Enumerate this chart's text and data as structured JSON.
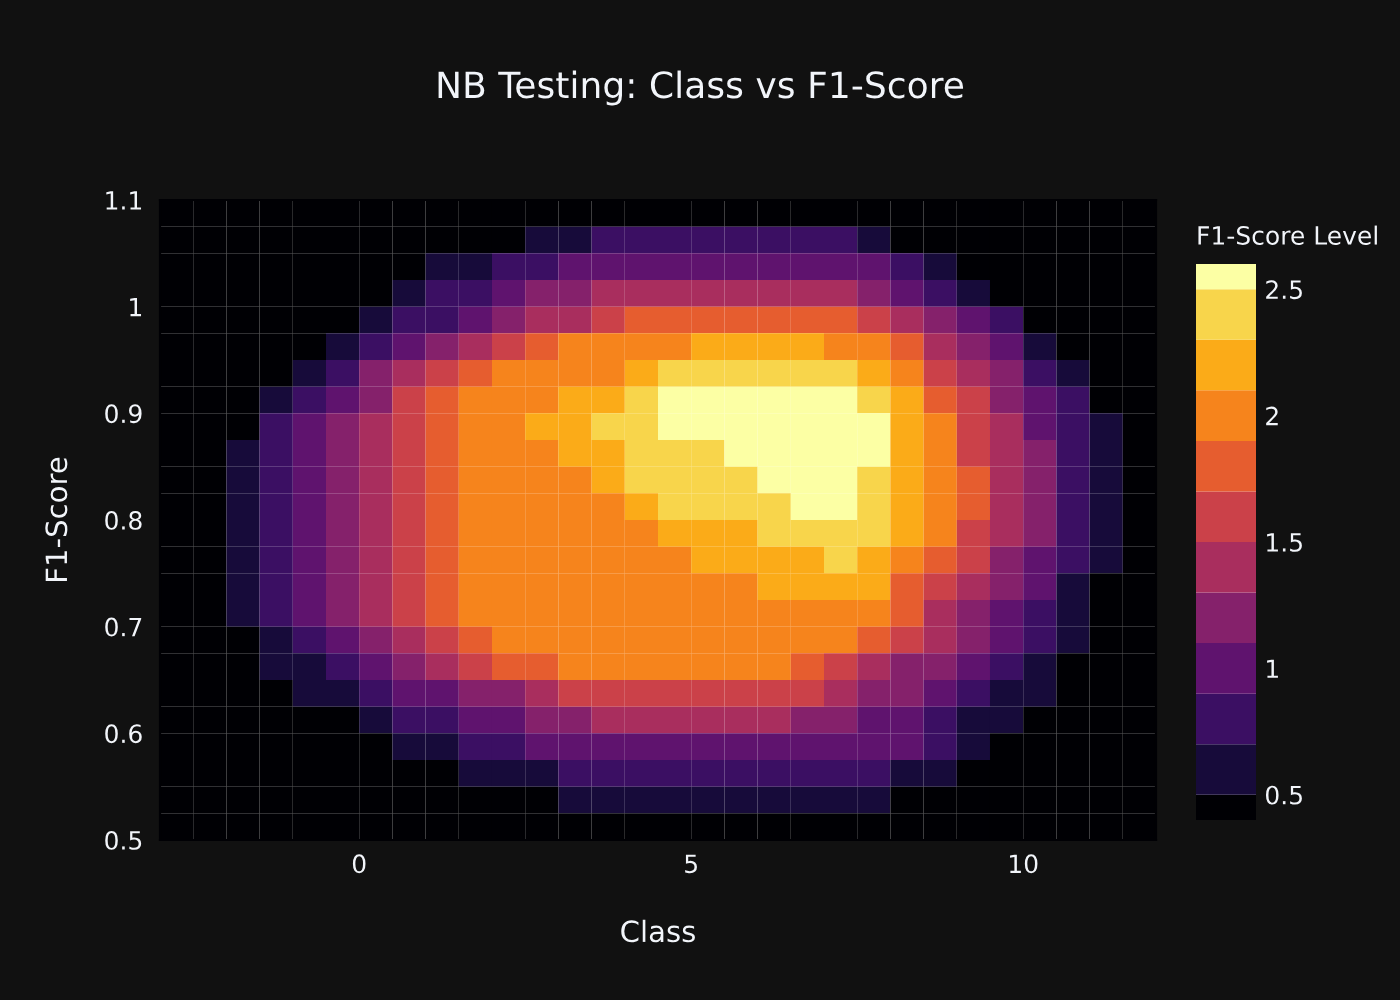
{
  "chart_data": {
    "type": "heatmap",
    "title": "NB Testing: Class vs F1-Score",
    "xlabel": "Class",
    "ylabel": "F1-Score",
    "clabel": "F1-Score Level",
    "x": [
      -2.75,
      -2.25,
      -1.75,
      -1.25,
      -0.75,
      -0.25,
      0.25,
      0.75,
      1.25,
      1.75,
      2.25,
      2.75,
      3.25,
      3.75,
      4.25,
      4.75,
      5.25,
      5.75,
      6.25,
      6.75,
      7.25,
      7.75,
      8.25,
      8.75,
      9.25,
      9.75,
      10.25,
      10.75,
      11.25,
      11.75
    ],
    "cells": [
      [
        0.4,
        0.4,
        0.4,
        0.4,
        0.4,
        0.4,
        0.4,
        0.4,
        0.4,
        0.4,
        0.4,
        0.4,
        0.4,
        0.4,
        0.4,
        0.4,
        0.4,
        0.4,
        0.4,
        0.4,
        0.4,
        0.4,
        0.4,
        0.4,
        0.4,
        0.4,
        0.4,
        0.4,
        0.4,
        0.4
      ],
      [
        0.4,
        0.4,
        0.4,
        0.4,
        0.4,
        0.4,
        0.4,
        0.4,
        0.4,
        0.4,
        0.4,
        0.6,
        0.6,
        0.8,
        0.8,
        0.8,
        0.8,
        0.8,
        0.8,
        0.8,
        0.8,
        0.6,
        0.4,
        0.4,
        0.4,
        0.4,
        0.4,
        0.4,
        0.4,
        0.4
      ],
      [
        0.4,
        0.4,
        0.4,
        0.4,
        0.4,
        0.4,
        0.4,
        0.4,
        0.6,
        0.6,
        0.8,
        0.8,
        1.0,
        1.0,
        1.0,
        1.0,
        1.0,
        1.0,
        1.0,
        1.0,
        1.0,
        1.0,
        0.8,
        0.6,
        0.4,
        0.4,
        0.4,
        0.4,
        0.4,
        0.4
      ],
      [
        0.4,
        0.4,
        0.4,
        0.4,
        0.4,
        0.4,
        0.4,
        0.6,
        0.8,
        0.8,
        1.0,
        1.2,
        1.2,
        1.4,
        1.4,
        1.4,
        1.4,
        1.4,
        1.4,
        1.4,
        1.4,
        1.2,
        1.0,
        0.8,
        0.6,
        0.4,
        0.4,
        0.4,
        0.4,
        0.4
      ],
      [
        0.4,
        0.4,
        0.4,
        0.4,
        0.4,
        0.4,
        0.6,
        0.8,
        0.8,
        1.0,
        1.2,
        1.4,
        1.4,
        1.6,
        1.8,
        1.8,
        1.8,
        1.8,
        1.8,
        1.8,
        1.8,
        1.6,
        1.4,
        1.2,
        1.0,
        0.8,
        0.4,
        0.4,
        0.4,
        0.4
      ],
      [
        0.4,
        0.4,
        0.4,
        0.4,
        0.4,
        0.6,
        0.8,
        1.0,
        1.2,
        1.4,
        1.6,
        1.8,
        2.0,
        2.0,
        2.0,
        2.0,
        2.2,
        2.2,
        2.2,
        2.2,
        2.0,
        2.0,
        1.8,
        1.4,
        1.2,
        1.0,
        0.6,
        0.4,
        0.4,
        0.4
      ],
      [
        0.4,
        0.4,
        0.4,
        0.4,
        0.6,
        0.8,
        1.2,
        1.4,
        1.6,
        1.8,
        2.0,
        2.0,
        2.0,
        2.0,
        2.2,
        2.4,
        2.4,
        2.4,
        2.4,
        2.4,
        2.4,
        2.2,
        2.0,
        1.6,
        1.4,
        1.2,
        0.8,
        0.6,
        0.4,
        0.4
      ],
      [
        0.4,
        0.4,
        0.4,
        0.6,
        0.8,
        1.0,
        1.2,
        1.6,
        1.8,
        2.0,
        2.0,
        2.0,
        2.2,
        2.2,
        2.4,
        2.6,
        2.6,
        2.6,
        2.6,
        2.6,
        2.6,
        2.4,
        2.2,
        1.8,
        1.6,
        1.2,
        1.0,
        0.8,
        0.4,
        0.4
      ],
      [
        0.4,
        0.4,
        0.4,
        0.8,
        1.0,
        1.2,
        1.4,
        1.6,
        1.8,
        2.0,
        2.0,
        2.2,
        2.2,
        2.4,
        2.4,
        2.6,
        2.6,
        2.6,
        2.6,
        2.6,
        2.6,
        2.6,
        2.2,
        2.0,
        1.6,
        1.4,
        1.0,
        0.8,
        0.6,
        0.4
      ],
      [
        0.4,
        0.4,
        0.6,
        0.8,
        1.0,
        1.2,
        1.4,
        1.6,
        1.8,
        2.0,
        2.0,
        2.0,
        2.2,
        2.2,
        2.4,
        2.4,
        2.4,
        2.6,
        2.6,
        2.6,
        2.6,
        2.6,
        2.2,
        2.0,
        1.6,
        1.4,
        1.2,
        0.8,
        0.6,
        0.4
      ],
      [
        0.4,
        0.4,
        0.6,
        0.8,
        1.0,
        1.2,
        1.4,
        1.6,
        1.8,
        2.0,
        2.0,
        2.0,
        2.0,
        2.2,
        2.4,
        2.4,
        2.4,
        2.4,
        2.6,
        2.6,
        2.6,
        2.4,
        2.2,
        2.0,
        1.8,
        1.4,
        1.2,
        0.8,
        0.6,
        0.4
      ],
      [
        0.4,
        0.4,
        0.6,
        0.8,
        1.0,
        1.2,
        1.4,
        1.6,
        1.8,
        2.0,
        2.0,
        2.0,
        2.0,
        2.0,
        2.2,
        2.4,
        2.4,
        2.4,
        2.4,
        2.6,
        2.6,
        2.4,
        2.2,
        2.0,
        1.8,
        1.4,
        1.2,
        0.8,
        0.6,
        0.4
      ],
      [
        0.4,
        0.4,
        0.6,
        0.8,
        1.0,
        1.2,
        1.4,
        1.6,
        1.8,
        2.0,
        2.0,
        2.0,
        2.0,
        2.0,
        2.0,
        2.2,
        2.2,
        2.2,
        2.4,
        2.4,
        2.4,
        2.4,
        2.2,
        2.0,
        1.6,
        1.4,
        1.2,
        0.8,
        0.6,
        0.4
      ],
      [
        0.4,
        0.4,
        0.6,
        0.8,
        1.0,
        1.2,
        1.4,
        1.6,
        1.8,
        2.0,
        2.0,
        2.0,
        2.0,
        2.0,
        2.0,
        2.0,
        2.2,
        2.2,
        2.2,
        2.2,
        2.4,
        2.2,
        2.0,
        1.8,
        1.6,
        1.2,
        1.0,
        0.8,
        0.6,
        0.4
      ],
      [
        0.4,
        0.4,
        0.6,
        0.8,
        1.0,
        1.2,
        1.4,
        1.6,
        1.8,
        2.0,
        2.0,
        2.0,
        2.0,
        2.0,
        2.0,
        2.0,
        2.0,
        2.0,
        2.2,
        2.2,
        2.2,
        2.2,
        1.8,
        1.6,
        1.4,
        1.2,
        1.0,
        0.6,
        0.4,
        0.4
      ],
      [
        0.4,
        0.4,
        0.6,
        0.8,
        1.0,
        1.2,
        1.4,
        1.6,
        1.8,
        2.0,
        2.0,
        2.0,
        2.0,
        2.0,
        2.0,
        2.0,
        2.0,
        2.0,
        2.0,
        2.0,
        2.0,
        2.0,
        1.8,
        1.4,
        1.2,
        1.0,
        0.8,
        0.6,
        0.4,
        0.4
      ],
      [
        0.4,
        0.4,
        0.4,
        0.6,
        0.8,
        1.0,
        1.2,
        1.4,
        1.6,
        1.8,
        2.0,
        2.0,
        2.0,
        2.0,
        2.0,
        2.0,
        2.0,
        2.0,
        2.0,
        2.0,
        2.0,
        1.8,
        1.6,
        1.4,
        1.2,
        1.0,
        0.8,
        0.6,
        0.4,
        0.4
      ],
      [
        0.4,
        0.4,
        0.4,
        0.6,
        0.6,
        0.8,
        1.0,
        1.2,
        1.4,
        1.6,
        1.8,
        1.8,
        2.0,
        2.0,
        2.0,
        2.0,
        2.0,
        2.0,
        2.0,
        1.8,
        1.6,
        1.4,
        1.2,
        1.2,
        1.0,
        0.8,
        0.6,
        0.4,
        0.4,
        0.4
      ],
      [
        0.4,
        0.4,
        0.4,
        0.4,
        0.6,
        0.6,
        0.8,
        1.0,
        1.0,
        1.2,
        1.2,
        1.4,
        1.6,
        1.6,
        1.6,
        1.6,
        1.6,
        1.6,
        1.6,
        1.6,
        1.4,
        1.2,
        1.2,
        1.0,
        0.8,
        0.6,
        0.6,
        0.4,
        0.4,
        0.4
      ],
      [
        0.4,
        0.4,
        0.4,
        0.4,
        0.4,
        0.4,
        0.6,
        0.8,
        0.8,
        1.0,
        1.0,
        1.2,
        1.2,
        1.4,
        1.4,
        1.4,
        1.4,
        1.4,
        1.4,
        1.2,
        1.2,
        1.0,
        1.0,
        0.8,
        0.6,
        0.6,
        0.4,
        0.4,
        0.4,
        0.4
      ],
      [
        0.4,
        0.4,
        0.4,
        0.4,
        0.4,
        0.4,
        0.4,
        0.6,
        0.6,
        0.8,
        0.8,
        1.0,
        1.0,
        1.0,
        1.0,
        1.0,
        1.0,
        1.0,
        1.0,
        1.0,
        1.0,
        1.0,
        1.0,
        0.8,
        0.6,
        0.4,
        0.4,
        0.4,
        0.4,
        0.4
      ],
      [
        0.4,
        0.4,
        0.4,
        0.4,
        0.4,
        0.4,
        0.4,
        0.4,
        0.4,
        0.6,
        0.6,
        0.6,
        0.8,
        0.8,
        0.8,
        0.8,
        0.8,
        0.8,
        0.8,
        0.8,
        0.8,
        0.8,
        0.6,
        0.6,
        0.4,
        0.4,
        0.4,
        0.4,
        0.4,
        0.4
      ],
      [
        0.4,
        0.4,
        0.4,
        0.4,
        0.4,
        0.4,
        0.4,
        0.4,
        0.4,
        0.4,
        0.4,
        0.4,
        0.6,
        0.6,
        0.6,
        0.6,
        0.6,
        0.6,
        0.6,
        0.6,
        0.6,
        0.6,
        0.4,
        0.4,
        0.4,
        0.4,
        0.4,
        0.4,
        0.4,
        0.4
      ],
      [
        0.4,
        0.4,
        0.4,
        0.4,
        0.4,
        0.4,
        0.4,
        0.4,
        0.4,
        0.4,
        0.4,
        0.4,
        0.4,
        0.4,
        0.4,
        0.4,
        0.4,
        0.4,
        0.4,
        0.4,
        0.4,
        0.4,
        0.4,
        0.4,
        0.4,
        0.4,
        0.4,
        0.4,
        0.4,
        0.4
      ]
    ],
    "colors": [
      "#000004",
      "#170b3a",
      "#3b0f63",
      "#5f136e",
      "#85216b",
      "#a92e5e",
      "#cb4149",
      "#e65d2f",
      "#f6841c",
      "#fbab18",
      "#f8d54b",
      "#fcffa4"
    ],
    "clim": [
      0.4,
      2.6
    ],
    "cticks": [
      0.5,
      1,
      1.5,
      2,
      2.5
    ],
    "xlim": [
      -3,
      12
    ],
    "xticks": [
      0,
      5,
      10
    ],
    "ylim": [
      0.5,
      1.1
    ],
    "yticks": [
      0.5,
      0.6,
      0.7,
      0.8,
      0.9,
      1,
      1.1
    ]
  }
}
